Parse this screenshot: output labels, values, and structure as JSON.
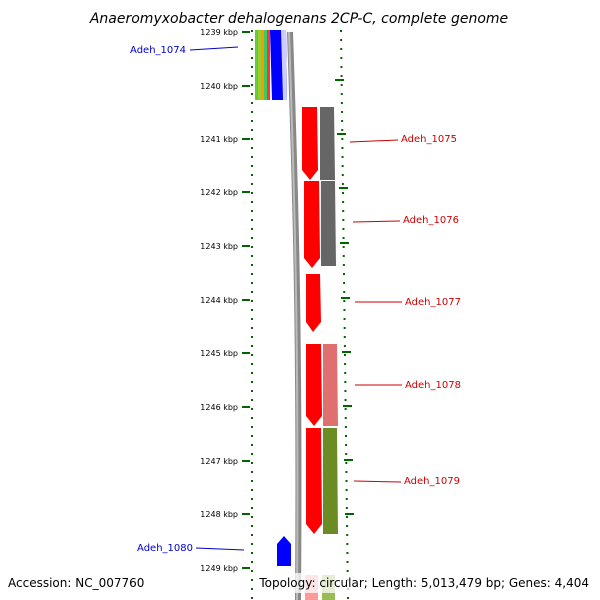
{
  "title": "Anaeromyxobacter dehalogenans 2CP-C, complete genome",
  "footer": {
    "accession": "Accession: NC_007760",
    "topology": "Topology: circular; Length: 5,013,479 bp; Genes: 4,404"
  },
  "scale": {
    "unit": "kbp",
    "ticks": [
      {
        "label": "1239 kbp"
      },
      {
        "label": "1240 kbp"
      },
      {
        "label": "1241 kbp"
      },
      {
        "label": "1242 kbp"
      },
      {
        "label": "1243 kbp"
      },
      {
        "label": "1244 kbp"
      },
      {
        "label": "1245 kbp"
      },
      {
        "label": "1246 kbp"
      },
      {
        "label": "1247 kbp"
      },
      {
        "label": "1248 kbp"
      },
      {
        "label": "1249 kbp"
      }
    ]
  },
  "genes": [
    {
      "name": "Adeh_1074",
      "strand": "minus",
      "color": "#0000cc"
    },
    {
      "name": "Adeh_1075",
      "strand": "plus",
      "color": "#cc0000"
    },
    {
      "name": "Adeh_1076",
      "strand": "plus",
      "color": "#cc0000"
    },
    {
      "name": "Adeh_1077",
      "strand": "plus",
      "color": "#cc0000"
    },
    {
      "name": "Adeh_1078",
      "strand": "plus",
      "color": "#cc0000"
    },
    {
      "name": "Adeh_1079",
      "strand": "plus",
      "color": "#cc0000"
    },
    {
      "name": "Adeh_1080",
      "strand": "minus",
      "color": "#0000cc"
    }
  ],
  "colors": {
    "plus_strand_label": "#cc0000",
    "minus_strand_label": "#0000cc",
    "gene_plus": "#ff0000",
    "gene_minus": "#0000ff",
    "tick": "#006600",
    "backbone": "#888888"
  }
}
